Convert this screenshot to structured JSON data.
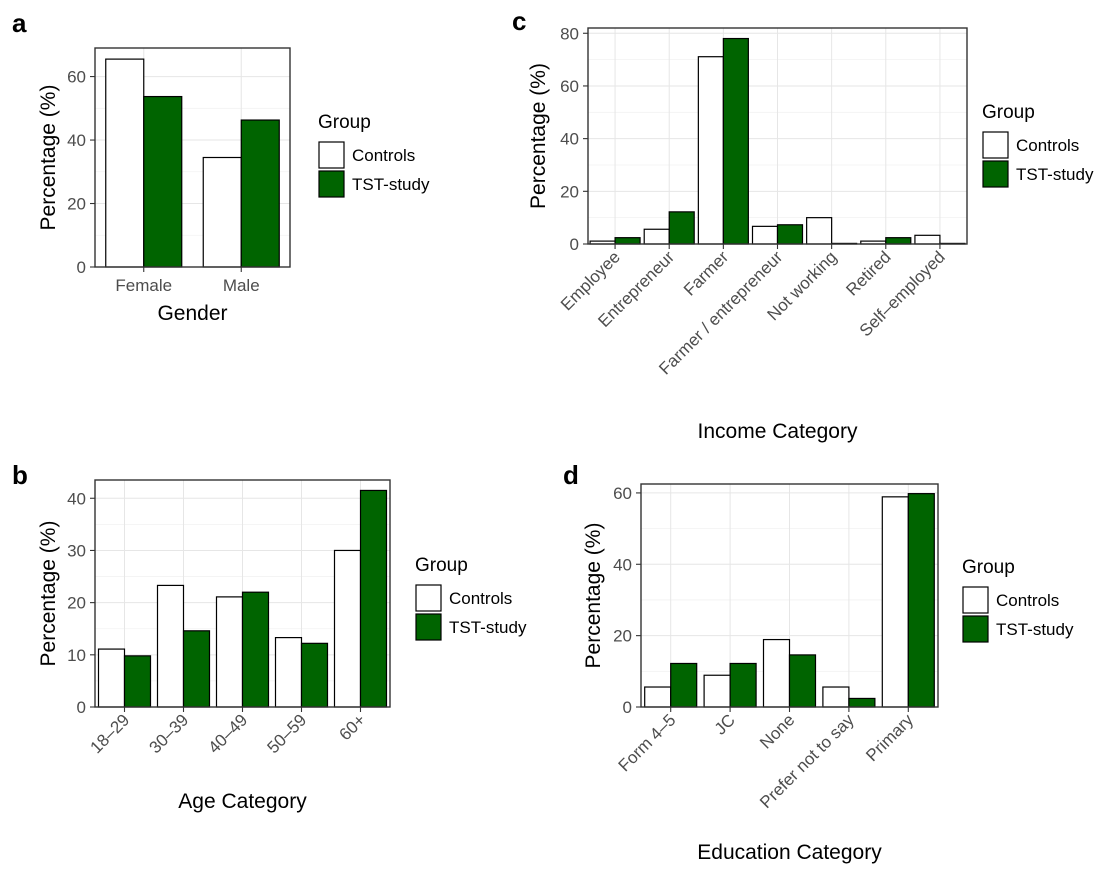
{
  "colors": {
    "controls": "#ffffff",
    "tst": "#006400"
  },
  "chart_data": [
    {
      "panel": "a",
      "type": "bar",
      "categories": [
        "Female",
        "Male"
      ],
      "series": [
        {
          "name": "Controls",
          "values": [
            65.5,
            34.5
          ]
        },
        {
          "name": "TST-study",
          "values": [
            53.7,
            46.3
          ]
        }
      ],
      "xlabel": "Gender",
      "ylabel": "Percentage (%)",
      "ylim": [
        0,
        69
      ],
      "yticks": [
        0,
        20,
        40,
        60
      ],
      "rotate_labels": false,
      "legend_title": "Group",
      "legend_position": "right",
      "grid": true
    },
    {
      "panel": "b",
      "type": "bar",
      "categories": [
        "18–29",
        "30–39",
        "40–49",
        "50–59",
        "60+"
      ],
      "series": [
        {
          "name": "Controls",
          "values": [
            11.1,
            23.3,
            21.1,
            13.3,
            30.0
          ]
        },
        {
          "name": "TST-study",
          "values": [
            9.8,
            14.6,
            22.0,
            12.2,
            41.5
          ]
        }
      ],
      "xlabel": "Age Category",
      "ylabel": "Percentage (%)",
      "ylim": [
        0,
        43.5
      ],
      "yticks": [
        0,
        10,
        20,
        30,
        40
      ],
      "rotate_labels": true,
      "legend_title": "Group",
      "legend_position": "right",
      "grid": true
    },
    {
      "panel": "c",
      "type": "bar",
      "categories": [
        "Employee",
        "Entrepreneur",
        "Farmer",
        "Farmer / entrepreneur",
        "Not working",
        "Retired",
        "Self–employed"
      ],
      "series": [
        {
          "name": "Controls",
          "values": [
            1.1,
            5.6,
            71.1,
            6.7,
            10.0,
            1.1,
            3.3
          ]
        },
        {
          "name": "TST-study",
          "values": [
            2.4,
            12.2,
            78.0,
            7.3,
            0.0,
            2.4,
            0.0
          ]
        }
      ],
      "xlabel": "Income Category",
      "ylabel": "Percentage (%)",
      "ylim": [
        0,
        82
      ],
      "yticks": [
        0,
        20,
        40,
        60,
        80
      ],
      "rotate_labels": true,
      "legend_title": "Group",
      "legend_position": "right",
      "grid": true
    },
    {
      "panel": "d",
      "type": "bar",
      "categories": [
        "Form 4–5",
        "JC",
        "None",
        "Prefer not to say",
        "Primary"
      ],
      "series": [
        {
          "name": "Controls",
          "values": [
            5.6,
            8.9,
            18.9,
            5.6,
            58.9
          ]
        },
        {
          "name": "TST-study",
          "values": [
            12.2,
            12.2,
            14.6,
            2.4,
            59.8
          ]
        }
      ],
      "xlabel": "Education Category",
      "ylabel": "Percentage (%)",
      "ylim": [
        0,
        62.5
      ],
      "yticks": [
        0,
        20,
        40,
        60
      ],
      "rotate_labels": true,
      "legend_title": "Group",
      "legend_position": "right",
      "grid": true
    }
  ]
}
